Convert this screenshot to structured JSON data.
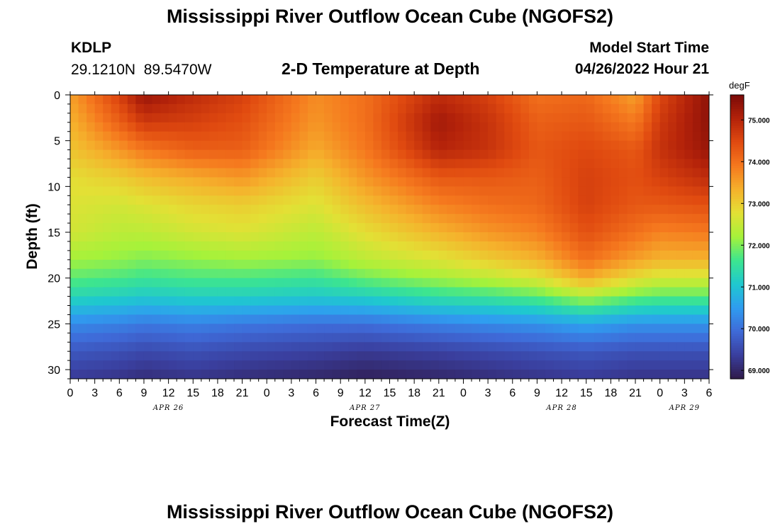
{
  "header": {
    "title": "Mississippi River Outflow Ocean Cube (NGOFS2)",
    "station_id": "KDLP",
    "station_coords": "29.1210N  89.5470W",
    "plot_subtitle": "2-D Temperature at Depth",
    "model_start_label": "Model Start Time",
    "model_start_value": "04/26/2022 Hour 21"
  },
  "footer": {
    "title": "Mississippi River Outflow Ocean Cube (NGOFS2)"
  },
  "colors": {
    "colormap": [
      "#2f1a4a",
      "#3a3f9e",
      "#3f6ad8",
      "#2f9df0",
      "#1fc8cf",
      "#3de58f",
      "#a6f23a",
      "#e3e035",
      "#f5b12c",
      "#f5781e",
      "#e04a10",
      "#b3220a",
      "#7a0a08"
    ]
  },
  "chart_data": {
    "type": "heatmap",
    "title": "2-D Temperature at Depth",
    "xlabel": "Forecast Time(Z)",
    "ylabel": "Depth (ft)",
    "x_ticks": [
      "0",
      "3",
      "6",
      "9",
      "12",
      "15",
      "18",
      "21",
      "0",
      "3",
      "6",
      "9",
      "12",
      "15",
      "18",
      "21",
      "0",
      "3",
      "6",
      "9",
      "12",
      "15",
      "18",
      "21",
      "0",
      "3",
      "6"
    ],
    "x_range_hours": [
      0,
      78
    ],
    "date_labels": [
      {
        "label": "APR 26",
        "hour": 12
      },
      {
        "label": "APR 27",
        "hour": 36
      },
      {
        "label": "APR 28",
        "hour": 60
      },
      {
        "label": "APR 29",
        "hour": 75
      }
    ],
    "y_ticks": [
      0,
      5,
      10,
      15,
      20,
      25,
      30
    ],
    "y_range": [
      0,
      31
    ],
    "y_inverted": true,
    "colorbar": {
      "unit": "degF",
      "min": 68.8,
      "max": 75.6,
      "ticks": [
        "69.000",
        "70.000",
        "71.000",
        "72.000",
        "73.000",
        "74.000",
        "75.000"
      ]
    },
    "profiles": {
      "depths": [
        0,
        3,
        6,
        9,
        12,
        15,
        18,
        20,
        22,
        25,
        28,
        31
      ],
      "columns": [
        {
          "hour": 0,
          "temps": [
            73.5,
            73.3,
            73.1,
            72.8,
            72.7,
            72.6,
            72.2,
            71.8,
            71.3,
            70.3,
            69.7,
            69.3
          ]
        },
        {
          "hour": 6,
          "temps": [
            74.6,
            74.2,
            73.6,
            73.0,
            72.6,
            72.4,
            72.1,
            71.7,
            71.2,
            70.2,
            69.6,
            69.2
          ]
        },
        {
          "hour": 9,
          "temps": [
            75.3,
            74.7,
            73.9,
            73.2,
            72.7,
            72.4,
            72.0,
            71.6,
            71.1,
            70.1,
            69.5,
            69.1
          ]
        },
        {
          "hour": 15,
          "temps": [
            74.9,
            74.6,
            74.2,
            73.4,
            72.9,
            72.6,
            72.1,
            71.7,
            71.2,
            70.2,
            69.6,
            69.2
          ]
        },
        {
          "hour": 21,
          "temps": [
            74.6,
            74.4,
            74.2,
            73.6,
            73.0,
            72.7,
            72.2,
            71.7,
            71.2,
            70.1,
            69.5,
            69.1
          ]
        },
        {
          "hour": 30,
          "temps": [
            73.7,
            73.6,
            73.4,
            73.0,
            72.7,
            72.4,
            72.1,
            71.6,
            71.1,
            70.0,
            69.4,
            69.0
          ]
        },
        {
          "hour": 36,
          "temps": [
            74.0,
            74.0,
            73.9,
            73.6,
            73.2,
            72.8,
            72.4,
            71.9,
            71.2,
            70.0,
            69.3,
            68.9
          ]
        },
        {
          "hour": 45,
          "temps": [
            74.9,
            75.2,
            75.0,
            74.3,
            73.8,
            73.3,
            72.7,
            72.2,
            71.5,
            70.2,
            69.4,
            69.0
          ]
        },
        {
          "hour": 51,
          "temps": [
            74.6,
            74.8,
            74.8,
            74.3,
            74.0,
            73.6,
            73.0,
            72.4,
            71.6,
            70.3,
            69.5,
            69.1
          ]
        },
        {
          "hour": 57,
          "temps": [
            74.0,
            74.2,
            74.3,
            74.2,
            74.1,
            73.8,
            73.3,
            72.7,
            71.8,
            70.4,
            69.6,
            69.2
          ]
        },
        {
          "hour": 63,
          "temps": [
            74.1,
            74.3,
            74.5,
            74.6,
            74.6,
            74.4,
            74.0,
            73.4,
            72.3,
            70.6,
            69.7,
            69.3
          ]
        },
        {
          "hour": 69,
          "temps": [
            73.5,
            73.9,
            74.3,
            74.4,
            74.3,
            74.0,
            73.5,
            72.8,
            71.9,
            70.4,
            69.6,
            69.2
          ]
        },
        {
          "hour": 72,
          "temps": [
            74.5,
            74.7,
            74.8,
            74.6,
            74.3,
            73.8,
            73.3,
            72.6,
            71.8,
            70.4,
            69.6,
            69.2
          ]
        },
        {
          "hour": 78,
          "temps": [
            75.4,
            75.4,
            75.3,
            74.9,
            74.4,
            73.9,
            73.3,
            72.6,
            71.8,
            70.4,
            69.6,
            69.2
          ]
        }
      ]
    }
  }
}
